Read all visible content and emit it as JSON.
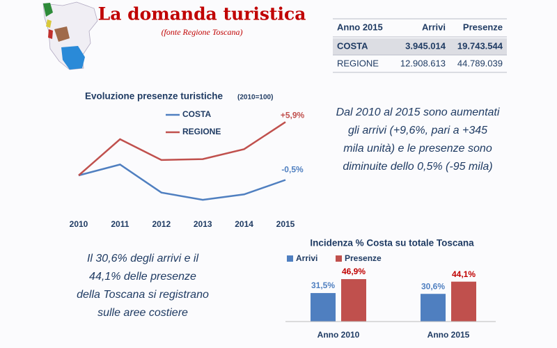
{
  "header": {
    "title": "La domanda turistica",
    "subtitle": "(fonte Regione Toscana)"
  },
  "table": {
    "columns": [
      "Anno 2015",
      "Arrivi",
      "Presenze"
    ],
    "rows": [
      [
        "COSTA",
        "3.945.014",
        "19.743.544"
      ],
      [
        "REGIONE",
        "12.908.613",
        "44.789.039"
      ]
    ]
  },
  "chart_data": [
    {
      "type": "line",
      "title": "Evoluzione presenze turistiche",
      "subtitle": "(2010=100)",
      "categories": [
        "2010",
        "2011",
        "2012",
        "2013",
        "2014",
        "2015"
      ],
      "series": [
        {
          "name": "COSTA",
          "color": "#4f7fc0",
          "values": [
            100,
            101.2,
            98.1,
            97.3,
            97.9,
            99.5
          ]
        },
        {
          "name": "REGIONE",
          "color": "#c0504d",
          "values": [
            100,
            104.0,
            101.7,
            101.8,
            102.9,
            105.9
          ]
        }
      ],
      "annotations": [
        "-0,5%",
        "+5,9%"
      ],
      "ylim": [
        96,
        107
      ]
    },
    {
      "type": "bar",
      "title": "Incidenza % Costa su totale Toscana",
      "categories": [
        "Anno 2010",
        "Anno 2015"
      ],
      "series": [
        {
          "name": "Arrivi",
          "color": "#4f7fc0",
          "values": [
            31.5,
            30.6
          ],
          "value_labels": [
            "31,5%",
            "30,6%"
          ]
        },
        {
          "name": "Presenze",
          "color": "#c0504d",
          "values": [
            46.9,
            44.1
          ],
          "value_labels": [
            "46,9%",
            "44,1%"
          ]
        }
      ],
      "ylim": [
        0,
        60
      ]
    }
  ],
  "notes": [
    [
      "Dal 2010 al 2015 sono aumentati",
      "gli arrivi (+9,6%, pari a +345",
      "mila unità) e le presenze sono",
      "diminuite dello 0,5% (-95 mila)"
    ],
    [
      "Il 30,6% degli arrivi e il",
      "44,1% delle presenze",
      "della Toscana si registrano",
      "sulle aree costiere"
    ]
  ]
}
